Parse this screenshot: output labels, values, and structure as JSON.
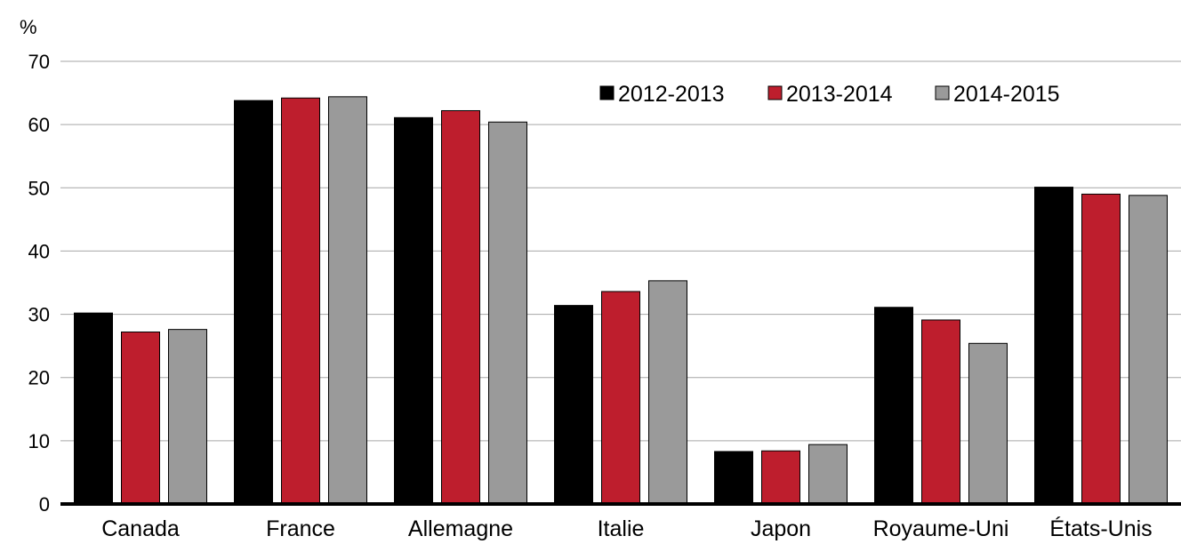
{
  "chart_data": {
    "type": "bar",
    "ylabel": "%",
    "ylim": [
      0,
      70
    ],
    "yticks": [
      0,
      10,
      20,
      30,
      40,
      50,
      60,
      70
    ],
    "grid": true,
    "legend_position": "top-right",
    "categories": [
      "Canada",
      "France",
      "Allemagne",
      "Italie",
      "Japon",
      "Royaume-Uni",
      "États-Unis"
    ],
    "series": [
      {
        "name": "2012-2013",
        "color": "#000000",
        "values": [
          30.2,
          63.8,
          61.1,
          31.4,
          8.3,
          31.1,
          50.1
        ]
      },
      {
        "name": "2013-2014",
        "color": "#be1e2d",
        "values": [
          27.2,
          64.2,
          62.2,
          33.6,
          8.4,
          29.1,
          49.0
        ]
      },
      {
        "name": "2014-2015",
        "color": "#9a9a9a",
        "values": [
          27.6,
          64.4,
          60.4,
          35.3,
          9.4,
          25.4,
          48.8
        ]
      }
    ]
  }
}
